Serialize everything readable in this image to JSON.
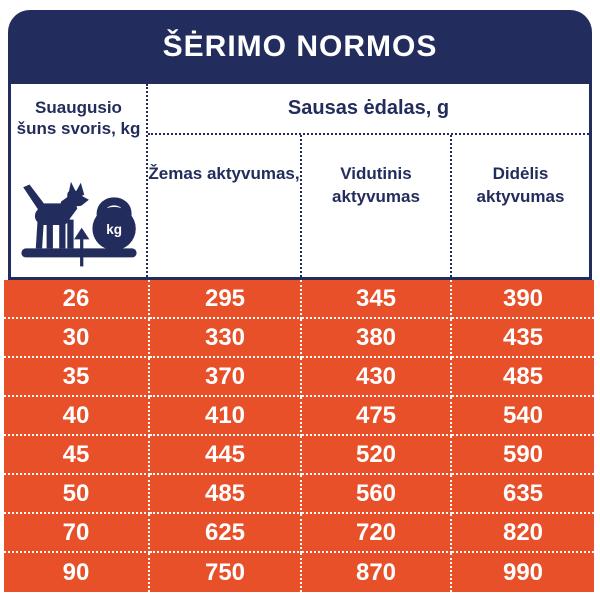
{
  "title": "ŠĖRIMO NORMOS",
  "header": {
    "weight_label": "Suaugusio šuns svoris, kg",
    "dry_food_label": "Sausas ėdalas, g",
    "activities": [
      "Žemas aktyvumas,",
      "Vidutinis aktyvumas",
      "Didėlis aktyvumas"
    ],
    "kettlebell_label": "kg"
  },
  "colors": {
    "navy": "#232d5d",
    "orange": "#e8502a",
    "text_on_orange": "#ffffff"
  },
  "chart_data": {
    "type": "table",
    "title": "ŠĖRIMO NORMOS",
    "group_header": "Sausas ėdalas, g",
    "columns": [
      "Suaugusio šuns svoris, kg",
      "Žemas aktyvumas,",
      "Vidutinis aktyvumas",
      "Didėlis aktyvumas"
    ],
    "rows": [
      [
        26,
        295,
        345,
        390
      ],
      [
        30,
        330,
        380,
        435
      ],
      [
        35,
        370,
        430,
        485
      ],
      [
        40,
        410,
        475,
        540
      ],
      [
        45,
        445,
        520,
        590
      ],
      [
        50,
        485,
        560,
        635
      ],
      [
        70,
        625,
        720,
        820
      ],
      [
        90,
        750,
        870,
        990
      ]
    ]
  }
}
